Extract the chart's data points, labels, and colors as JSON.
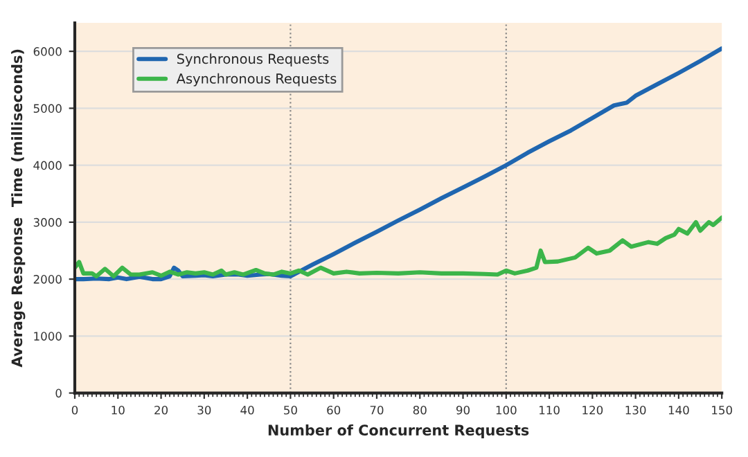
{
  "chart_data": {
    "type": "line",
    "xlabel": "Number of Concurrent Requests",
    "ylabel": "Average Response  Time (milliseconds)",
    "xlim": [
      0,
      150
    ],
    "xticks": [
      0,
      10,
      20,
      30,
      40,
      50,
      60,
      70,
      80,
      90,
      100,
      110,
      120,
      130,
      140,
      150
    ],
    "ylim": [
      0,
      6500
    ],
    "yticks": [
      0,
      1000,
      2000,
      3000,
      4000,
      5000,
      6000
    ],
    "grid": "y",
    "legend": "top left",
    "ref_lines": [
      {
        "axis": "x",
        "value": 50,
        "line_style": "dotted",
        "color": "#888888"
      },
      {
        "axis": "x",
        "value": 100,
        "line_style": "dotted",
        "color": "#888888"
      }
    ],
    "series": [
      {
        "name": "Synchronous Requests",
        "color": "#1f66b0",
        "x": [
          0,
          2,
          5,
          8,
          10,
          12,
          15,
          18,
          20,
          22,
          23,
          24,
          25,
          28,
          30,
          32,
          35,
          38,
          40,
          43,
          45,
          48,
          50,
          55,
          60,
          65,
          70,
          75,
          80,
          85,
          90,
          95,
          100,
          105,
          110,
          115,
          120,
          125,
          128,
          130,
          135,
          140,
          145,
          150
        ],
        "values": [
          2000,
          2000,
          2010,
          2000,
          2030,
          2000,
          2040,
          2000,
          2000,
          2050,
          2200,
          2150,
          2050,
          2060,
          2070,
          2050,
          2080,
          2080,
          2060,
          2080,
          2090,
          2060,
          2050,
          2250,
          2440,
          2640,
          2830,
          3030,
          3220,
          3420,
          3610,
          3800,
          4000,
          4220,
          4420,
          4610,
          4830,
          5050,
          5100,
          5220,
          5420,
          5620,
          5830,
          6050
        ]
      },
      {
        "name": "Asynchronous Requests",
        "color": "#3cb54a",
        "x": [
          0,
          1,
          2,
          4,
          5,
          7,
          9,
          11,
          13,
          15,
          18,
          20,
          22,
          24,
          26,
          28,
          30,
          32,
          34,
          35,
          37,
          39,
          42,
          44,
          46,
          48,
          50,
          52,
          54,
          57,
          60,
          63,
          66,
          70,
          75,
          80,
          85,
          90,
          95,
          98,
          100,
          102,
          105,
          107,
          108,
          109,
          112,
          116,
          119,
          121,
          124,
          127,
          129,
          133,
          135,
          137,
          139,
          140,
          142,
          144,
          145,
          147,
          148,
          150
        ],
        "values": [
          2200,
          2300,
          2100,
          2100,
          2050,
          2180,
          2050,
          2200,
          2080,
          2080,
          2120,
          2060,
          2130,
          2080,
          2120,
          2100,
          2120,
          2080,
          2150,
          2080,
          2120,
          2080,
          2160,
          2100,
          2080,
          2130,
          2100,
          2150,
          2080,
          2200,
          2100,
          2130,
          2100,
          2110,
          2100,
          2120,
          2100,
          2100,
          2090,
          2080,
          2150,
          2100,
          2150,
          2200,
          2500,
          2300,
          2310,
          2380,
          2550,
          2450,
          2500,
          2680,
          2570,
          2650,
          2620,
          2720,
          2780,
          2880,
          2800,
          3000,
          2850,
          3000,
          2950,
          3080
        ]
      }
    ]
  }
}
